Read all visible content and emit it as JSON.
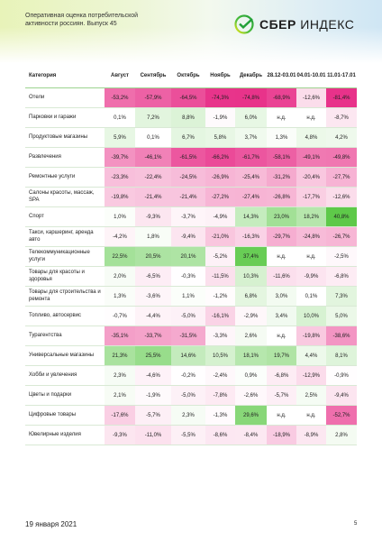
{
  "header": {
    "subtitle_line1": "Оперативная оценка потребительской",
    "subtitle_line2": "активности россиян. Выпуск 45",
    "logo_brand": "СБЕР",
    "logo_product": "ИНДЕКС",
    "logo_icon": "sber-check-logo-icon"
  },
  "table": {
    "columns": [
      "Категория",
      "Август",
      "Сентябрь",
      "Октябрь",
      "Ноябрь",
      "Декабрь",
      "28.12-03.01",
      "04.01-10.01",
      "11.01-17.01"
    ],
    "rows": [
      {
        "label": "Отели",
        "values": [
          "-53,2%",
          "-57,9%",
          "-64,5%",
          "-74,3%",
          "-74,8%",
          "-68,9%",
          "-12,6%",
          "-81,4%"
        ]
      },
      {
        "label": "Парковки и гаражи",
        "values": [
          "0,1%",
          "7,2%",
          "8,8%",
          "-1,9%",
          "6,0%",
          "н.д.",
          "н.д.",
          "-8,7%"
        ]
      },
      {
        "label": "Продуктовые магазины",
        "values": [
          "5,9%",
          "0,1%",
          "6,7%",
          "5,8%",
          "3,7%",
          "1,3%",
          "4,8%",
          "4,2%"
        ]
      },
      {
        "label": "Развлечения",
        "values": [
          "-39,7%",
          "-46,1%",
          "-61,5%",
          "-66,2%",
          "-61,7%",
          "-58,1%",
          "-49,1%",
          "-49,8%"
        ]
      },
      {
        "label": "Ремонтные услуги",
        "values": [
          "-23,3%",
          "-22,4%",
          "-24,5%",
          "-26,9%",
          "-25,4%",
          "-31,2%",
          "-20,4%",
          "-27,7%"
        ]
      },
      {
        "label": "Салоны красоты, массаж, SPA",
        "values": [
          "-19,8%",
          "-21,4%",
          "-21,4%",
          "-27,2%",
          "-27,4%",
          "-26,8%",
          "-17,7%",
          "-12,6%"
        ]
      },
      {
        "label": "Спорт",
        "values": [
          "1,0%",
          "-9,3%",
          "-3,7%",
          "-4,9%",
          "14,3%",
          "23,0%",
          "18,2%",
          "40,8%"
        ]
      },
      {
        "label": "Такси, каршеринг, аренда авто",
        "values": [
          "-4,2%",
          "1,8%",
          "-9,4%",
          "-21,0%",
          "-16,3%",
          "-29,7%",
          "-24,8%",
          "-26,7%"
        ]
      },
      {
        "label": "Телекоммуникационные услуги",
        "values": [
          "22,5%",
          "20,5%",
          "20,1%",
          "-5,2%",
          "37,4%",
          "н.д.",
          "н.д.",
          "-2,5%"
        ]
      },
      {
        "label": "Товары для красоты и здоровья",
        "values": [
          "2,0%",
          "-6,5%",
          "-0,3%",
          "-11,5%",
          "10,3%",
          "-11,6%",
          "-9,9%",
          "-6,8%"
        ]
      },
      {
        "label": "Товары для строительства и ремонта",
        "values": [
          "1,3%",
          "-3,6%",
          "1,1%",
          "-1,2%",
          "6,8%",
          "3,0%",
          "0,1%",
          "7,3%"
        ]
      },
      {
        "label": "Топливо, автосервис",
        "values": [
          "-0,7%",
          "-4,4%",
          "-5,0%",
          "-16,1%",
          "-2,9%",
          "3,4%",
          "10,0%",
          "5,0%"
        ]
      },
      {
        "label": "Турагентства",
        "values": [
          "-35,1%",
          "-33,7%",
          "-31,5%",
          "-3,3%",
          "2,6%",
          "н.д.",
          "-19,8%",
          "-38,6%"
        ]
      },
      {
        "label": "Универсальные магазины",
        "values": [
          "21,3%",
          "25,5%",
          "14,6%",
          "10,5%",
          "18,1%",
          "19,7%",
          "4,4%",
          "8,1%"
        ]
      },
      {
        "label": "Хобби и увлечения",
        "values": [
          "2,3%",
          "-4,6%",
          "-0,2%",
          "-2,4%",
          "0,9%",
          "-6,8%",
          "-12,9%",
          "-0,9%"
        ]
      },
      {
        "label": "Цветы и подарки",
        "values": [
          "2,1%",
          "-1,9%",
          "-5,0%",
          "-7,8%",
          "-2,6%",
          "-5,7%",
          "2,5%",
          "-9,4%"
        ]
      },
      {
        "label": "Цифровые товары",
        "values": [
          "-17,6%",
          "-5,7%",
          "2,3%",
          "-1,3%",
          "29,6%",
          "н.д.",
          "н.д.",
          "-52,7%"
        ]
      },
      {
        "label": "Ювелирные изделия",
        "values": [
          "-9,3%",
          "-11,0%",
          "-5,5%",
          "-8,6%",
          "-8,4%",
          "-18,9%",
          "-8,9%",
          "2,8%"
        ]
      }
    ]
  },
  "footer": {
    "date": "19 января 2021",
    "page_number": "5"
  },
  "colors": {
    "brand_green": "#21a038",
    "positive": "#5ec949",
    "negative": "#e8328a"
  }
}
